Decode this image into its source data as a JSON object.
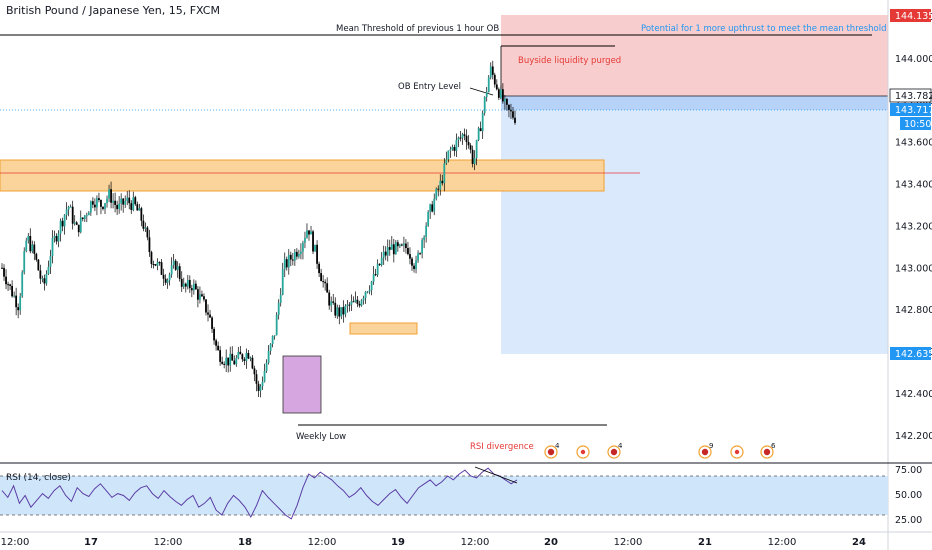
{
  "header": {
    "title": "British Pound / Japanese Yen, 15, FXCM"
  },
  "annotations": {
    "mean_threshold": "Mean Threshold of previous 1 hour OB",
    "potential": "Potential for 1 more upthrust to meet the mean threshold",
    "buyside": "Buyside liquidity purged",
    "ob_entry": "OB Entry Level",
    "weekly_low": "Weekly Low",
    "rsi_divergence": "RSI divergence"
  },
  "price_tags": [
    {
      "value": "144.135",
      "color": "#e53935"
    },
    {
      "value": "143.782",
      "color": "#131722"
    },
    {
      "value": "143.717",
      "color": "#2196f3"
    },
    {
      "value": "10:50",
      "color": "#2196f3"
    },
    {
      "value": "142.635",
      "color": "#2196f3"
    }
  ],
  "rsi": {
    "label": "RSI (14, close)",
    "levels": [
      70,
      30
    ],
    "ticks": [
      "75.00",
      "50.00",
      "25.00"
    ],
    "values": [
      55,
      48,
      60,
      42,
      50,
      38,
      45,
      52,
      47,
      55,
      60,
      50,
      44,
      58,
      52,
      49,
      57,
      62,
      55,
      48,
      52,
      50,
      45,
      53,
      58,
      60,
      52,
      47,
      55,
      49,
      44,
      40,
      46,
      50,
      38,
      42,
      48,
      35,
      30,
      42,
      50,
      45,
      38,
      28,
      40,
      55,
      48,
      42,
      36,
      30,
      26,
      40,
      58,
      72,
      68,
      74,
      70,
      66,
      60,
      55,
      48,
      52,
      58,
      50,
      44,
      40,
      46,
      52,
      56,
      48,
      42,
      50,
      58,
      62,
      66,
      60,
      64,
      70,
      66,
      72,
      76,
      70,
      68,
      74,
      78,
      72,
      70,
      66,
      62,
      66
    ]
  },
  "event_icons": [
    {
      "type": "flag",
      "count": "4"
    },
    {
      "type": "dot",
      "count": ""
    },
    {
      "type": "flag",
      "count": "4"
    },
    {
      "type": "flag",
      "count": "9"
    },
    {
      "type": "dot",
      "count": ""
    },
    {
      "type": "flag",
      "count": "6"
    }
  ],
  "colors": {
    "bull": "#26a69a",
    "bear": "#000000",
    "red_zone": "#f7c4c4",
    "blue_zone": "#d5e5fb",
    "orange_zone": "#fbd49b",
    "purple_zone": "#d5a6e0",
    "rsi_band": "#cfe6fa"
  },
  "chart_data": {
    "type": "candlestick",
    "title": "British Pound / Japanese Yen, 15, FXCM",
    "y_ticks": [
      144.2,
      144.0,
      143.8,
      143.6,
      143.4,
      143.2,
      143.0,
      142.8,
      142.6,
      142.4,
      142.2
    ],
    "y_tick_labels": [
      "144.200",
      "144.000",
      "143.800",
      "143.600",
      "143.400",
      "143.200",
      "143.000",
      "142.800",
      "142.600",
      "142.400",
      "142.200"
    ],
    "x_tick_labels": [
      "12:00",
      "17",
      "12:00",
      "18",
      "12:00",
      "19",
      "12:00",
      "20",
      "12:00",
      "21",
      "12:00",
      "24"
    ],
    "ylim": [
      142.12,
      144.26
    ],
    "close_path": [
      143.0,
      142.9,
      142.82,
      143.15,
      143.05,
      142.9,
      143.1,
      143.2,
      143.3,
      143.18,
      143.25,
      143.33,
      143.3,
      143.35,
      143.28,
      143.32,
      143.3,
      143.22,
      143.05,
      143.0,
      142.95,
      143.02,
      142.9,
      142.92,
      142.85,
      142.78,
      142.6,
      142.56,
      142.55,
      142.58,
      142.6,
      142.4,
      142.55,
      142.7,
      143.0,
      143.05,
      143.1,
      143.2,
      143.05,
      142.9,
      142.8,
      142.78,
      142.82,
      142.83,
      142.9,
      142.95,
      143.05,
      143.1,
      143.08,
      143.1,
      143.0,
      143.18,
      143.3,
      143.4,
      143.55,
      143.6,
      143.65,
      143.5,
      143.72,
      143.95,
      143.85,
      143.75,
      143.72
    ]
  }
}
